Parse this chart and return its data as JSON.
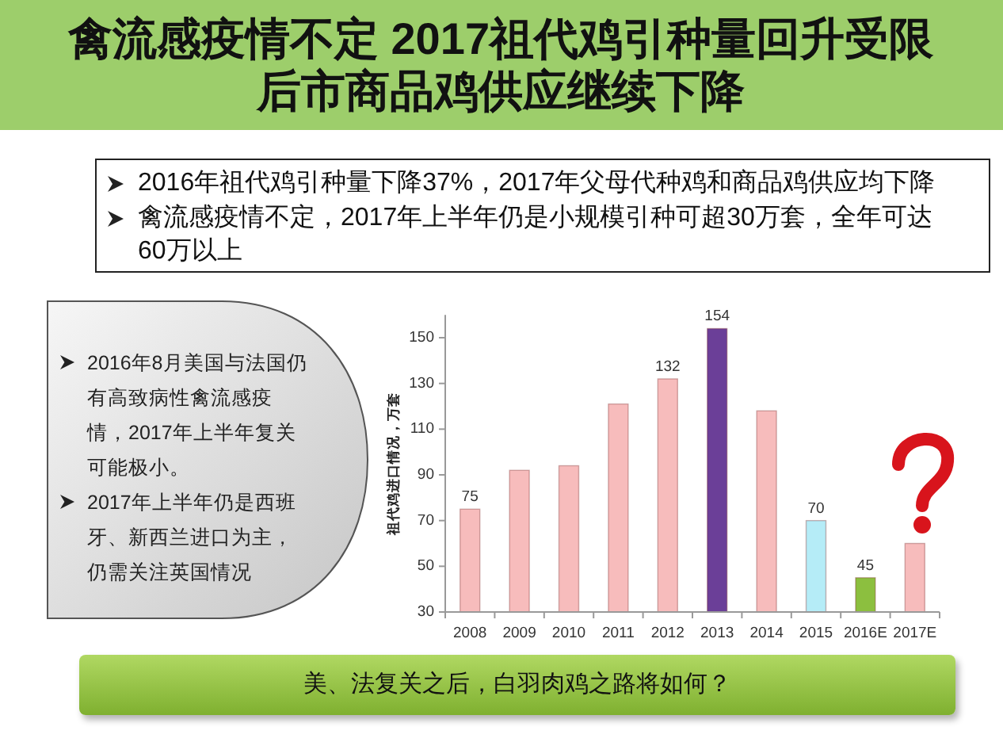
{
  "chart_data": {
    "type": "bar",
    "title": "禽流感疫情不定 2017祖代鸡引种量回升受限后市商品鸡供应继续下降",
    "ylabel": "祖代鸡进口情况，万套",
    "categories": [
      "2008",
      "2009",
      "2010",
      "2011",
      "2012",
      "2013",
      "2014",
      "2015",
      "2016E",
      "2017E"
    ],
    "values": [
      75,
      92,
      94,
      121,
      132,
      154,
      118,
      70,
      45,
      60
    ],
    "colors": [
      "#f7bcbc",
      "#f7bcbc",
      "#f7bcbc",
      "#f7bcbc",
      "#f7bcbc",
      "#6b3f98",
      "#f7bcbc",
      "#b5ecf7",
      "#8cbf3f",
      "#f7bcbc"
    ],
    "value_labels": [
      "75",
      null,
      null,
      null,
      "132",
      "154",
      null,
      "70",
      "45",
      null
    ],
    "ylim": [
      30,
      160
    ],
    "yticks": [
      30,
      50,
      70,
      90,
      110,
      130,
      150
    ],
    "annotations": [
      "2016年祖代鸡引种量下降37%，2017年父母代种鸡和商品鸡供应均下降",
      "禽流感疫情不定，2017年上半年仍是小规模引种可超30万套，全年可达60万以上",
      "2016年8月美国与法国仍有高致病性禽流感疫情，2017年上半年复关可能极小。",
      "2017年上半年仍是西班牙、新西兰进口为主，仍需关注英国情况",
      "美、法复关之后，白羽肉鸡之路将如何？"
    ]
  }
}
